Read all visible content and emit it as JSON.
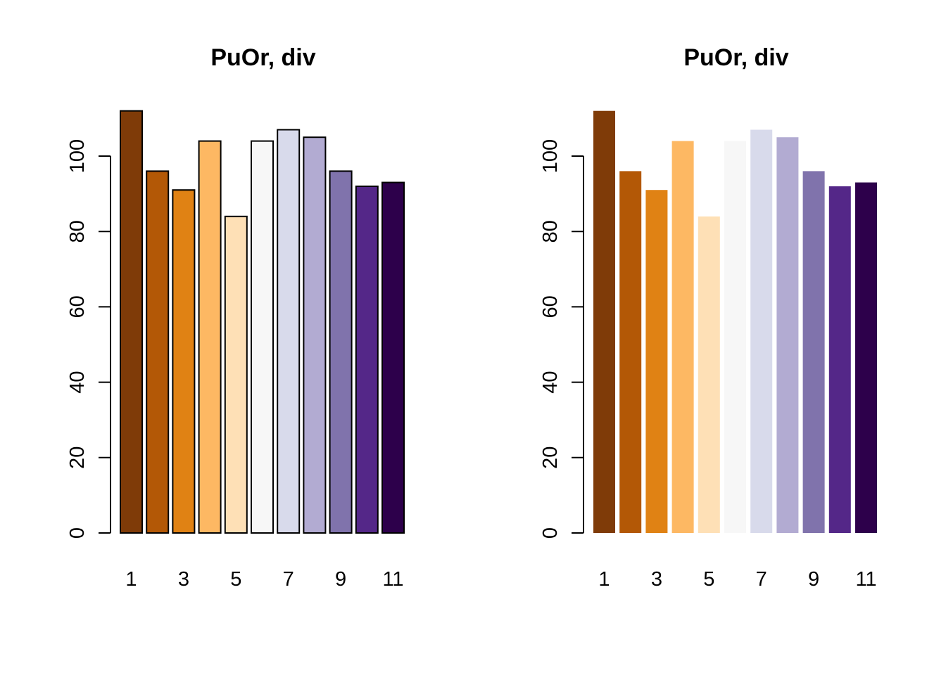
{
  "palette_colors": [
    "#7F3B08",
    "#B35806",
    "#E08214",
    "#FDB863",
    "#FEE0B6",
    "#F7F7F7",
    "#D8DAEB",
    "#B2ABD2",
    "#8073AC",
    "#542788",
    "#2D004B"
  ],
  "chart_data": [
    {
      "type": "bar",
      "title": "PuOr, div",
      "bar_borders": true,
      "categories": [
        "1",
        "2",
        "3",
        "4",
        "5",
        "6",
        "7",
        "8",
        "9",
        "10",
        "11"
      ],
      "x_tick_labels": [
        "1",
        "3",
        "5",
        "7",
        "9",
        "11"
      ],
      "values": [
        112,
        96,
        91,
        104,
        84,
        104,
        107,
        105,
        96,
        92,
        93
      ],
      "ylim": [
        0,
        112
      ],
      "y_ticks": [
        0,
        20,
        40,
        60,
        80,
        100
      ],
      "y_tick_labels": [
        "0",
        "20",
        "40",
        "60",
        "80",
        "100"
      ],
      "xlabel": "",
      "ylabel": "",
      "grid": false
    },
    {
      "type": "bar",
      "title": "PuOr, div",
      "bar_borders": false,
      "categories": [
        "1",
        "2",
        "3",
        "4",
        "5",
        "6",
        "7",
        "8",
        "9",
        "10",
        "11"
      ],
      "x_tick_labels": [
        "1",
        "3",
        "5",
        "7",
        "9",
        "11"
      ],
      "values": [
        112,
        96,
        91,
        104,
        84,
        104,
        107,
        105,
        96,
        92,
        93
      ],
      "ylim": [
        0,
        112
      ],
      "y_ticks": [
        0,
        20,
        40,
        60,
        80,
        100
      ],
      "y_tick_labels": [
        "0",
        "20",
        "40",
        "60",
        "80",
        "100"
      ],
      "xlabel": "",
      "ylabel": "",
      "grid": false
    }
  ]
}
